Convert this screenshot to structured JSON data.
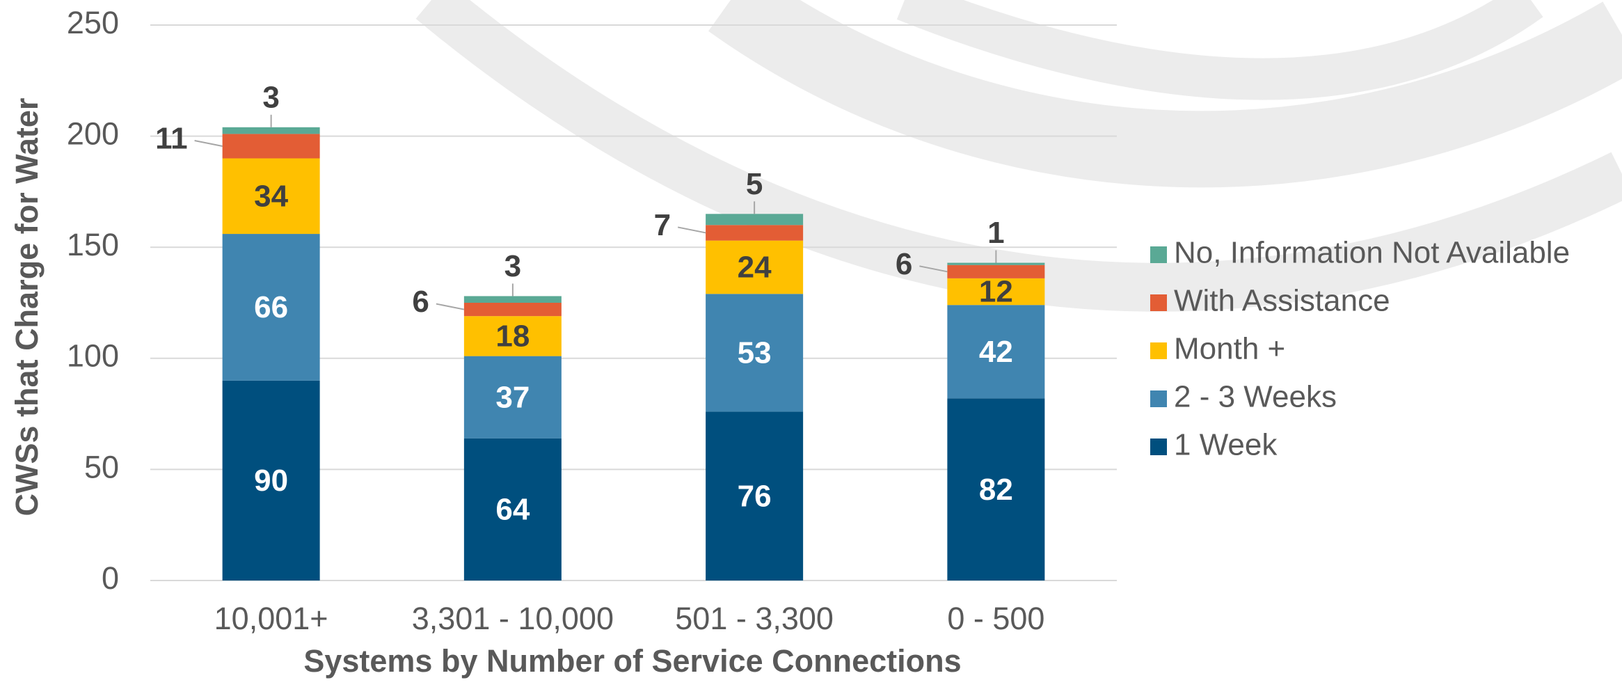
{
  "chart_data": {
    "type": "stacked-bar",
    "x_label": "Systems by Number of Service Connections",
    "y_label": "CWSs that Charge for Water",
    "categories": [
      "10,001+",
      "3,301 - 10,000",
      "501 - 3,300",
      "0 - 500"
    ],
    "series": [
      {
        "name": "1 Week",
        "color": "#004f7e",
        "values": [
          90,
          64,
          76,
          82
        ]
      },
      {
        "name": "2 - 3 Weeks",
        "color": "#4085b0",
        "values": [
          66,
          37,
          53,
          42
        ]
      },
      {
        "name": "Month +",
        "color": "#ffc000",
        "values": [
          34,
          18,
          24,
          12
        ]
      },
      {
        "name": "With Assistance",
        "color": "#e35d35",
        "values": [
          11,
          6,
          7,
          6
        ]
      },
      {
        "name": "No, Information Not Available",
        "color": "#5aa995",
        "values": [
          3,
          3,
          5,
          1
        ]
      }
    ],
    "ylim": [
      0,
      250
    ],
    "yticks": [
      0,
      50,
      100,
      150,
      200,
      250
    ],
    "grid": true,
    "legend": "right"
  }
}
